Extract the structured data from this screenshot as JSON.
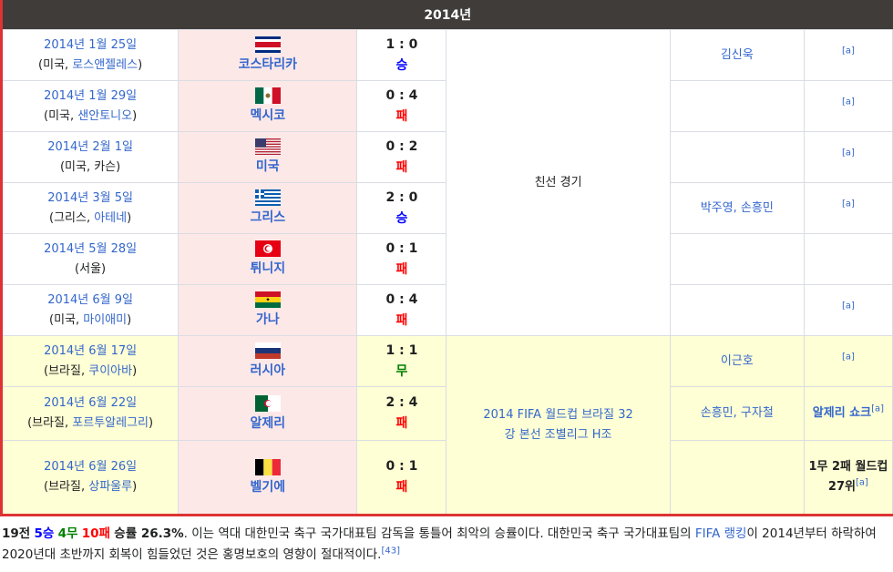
{
  "header": {
    "title": "2014년"
  },
  "colors": {
    "win": "#0000ff",
    "draw": "#008000",
    "loss": "#ff0000",
    "link": "#3366cc",
    "border": "#dd3333"
  },
  "rows": [
    {
      "date": "2014년 1월 25일",
      "country": "미국",
      "city": "로스앤젤레스",
      "city_link": true,
      "opponent": "코스타리카",
      "flag": "costa-rica",
      "score": "1 : 0",
      "result": "승",
      "result_type": "win",
      "scorers": "김신욱",
      "note": "[a]"
    },
    {
      "date": "2014년 1월 29일",
      "country": "미국",
      "city": "샌안토니오",
      "city_link": true,
      "opponent": "멕시코",
      "flag": "mexico",
      "score": "0 : 4",
      "result": "패",
      "result_type": "loss",
      "scorers": "",
      "note": "[a]"
    },
    {
      "date": "2014년 2월 1일",
      "country": "미국",
      "city": "카슨",
      "city_link": false,
      "opponent": "미국",
      "flag": "usa",
      "score": "0 : 2",
      "result": "패",
      "result_type": "loss",
      "scorers": "",
      "note": "[a]"
    },
    {
      "date": "2014년 3월 5일",
      "country": "그리스",
      "city": "아테네",
      "city_link": true,
      "opponent": "그리스",
      "flag": "greece",
      "score": "2 : 0",
      "result": "승",
      "result_type": "win",
      "scorers": "박주영, 손흥민",
      "note": "[a]"
    },
    {
      "date": "2014년 5월 28일",
      "country": "",
      "city": "서울",
      "city_link": false,
      "opponent": "튀니지",
      "flag": "tunisia",
      "score": "0 : 1",
      "result": "패",
      "result_type": "loss",
      "scorers": "",
      "note": ""
    },
    {
      "date": "2014년 6월 9일",
      "country": "미국",
      "city": "마이애미",
      "city_link": true,
      "opponent": "가나",
      "flag": "ghana",
      "score": "0 : 4",
      "result": "패",
      "result_type": "loss",
      "scorers": "",
      "note": "[a]"
    },
    {
      "date": "2014년 6월 17일",
      "country": "브라질",
      "city": "쿠이아바",
      "city_link": true,
      "opponent": "러시아",
      "flag": "russia",
      "score": "1 : 1",
      "result": "무",
      "result_type": "draw",
      "scorers": "이근호",
      "note": "[a]"
    },
    {
      "date": "2014년 6월 22일",
      "country": "브라질",
      "city": "포르투알레그리",
      "city_link": true,
      "opponent": "알제리",
      "flag": "algeria",
      "score": "2 : 4",
      "result": "패",
      "result_type": "loss",
      "scorers": "손흥민, 구자철",
      "note_text": "알제리 쇼크",
      "note": "[a]"
    },
    {
      "date": "2014년 6월 26일",
      "country": "브라질",
      "city": "상파울루",
      "city_link": true,
      "opponent": "벨기에",
      "flag": "belgium",
      "score": "0 : 1",
      "result": "패",
      "result_type": "loss",
      "scorers": "",
      "note_text": "1무 2패 월드컵 27위",
      "note": "[a]"
    }
  ],
  "competitions": {
    "friendly": "친선 경기",
    "worldcup": "2014 FIFA 월드컵 브라질 32강 본선 조별리그 H조"
  },
  "summary": {
    "total": "19전",
    "wins": "5승",
    "draws": "4무",
    "losses": "10패",
    "rate": "승률 26.3%",
    "text1": ". 이는 역대 대한민국 축구 국가대표팀 감독을 통틀어 최악의 승률이다. 대한민국 축구 국가대표팀의 ",
    "link": "FIFA 랭킹",
    "text2": "이 2014년부터 하락하여 2020년대 초반까지 회복이 힘들었던 것은 홍명보호의 영향이 절대적이다.",
    "ref": "[43]"
  }
}
